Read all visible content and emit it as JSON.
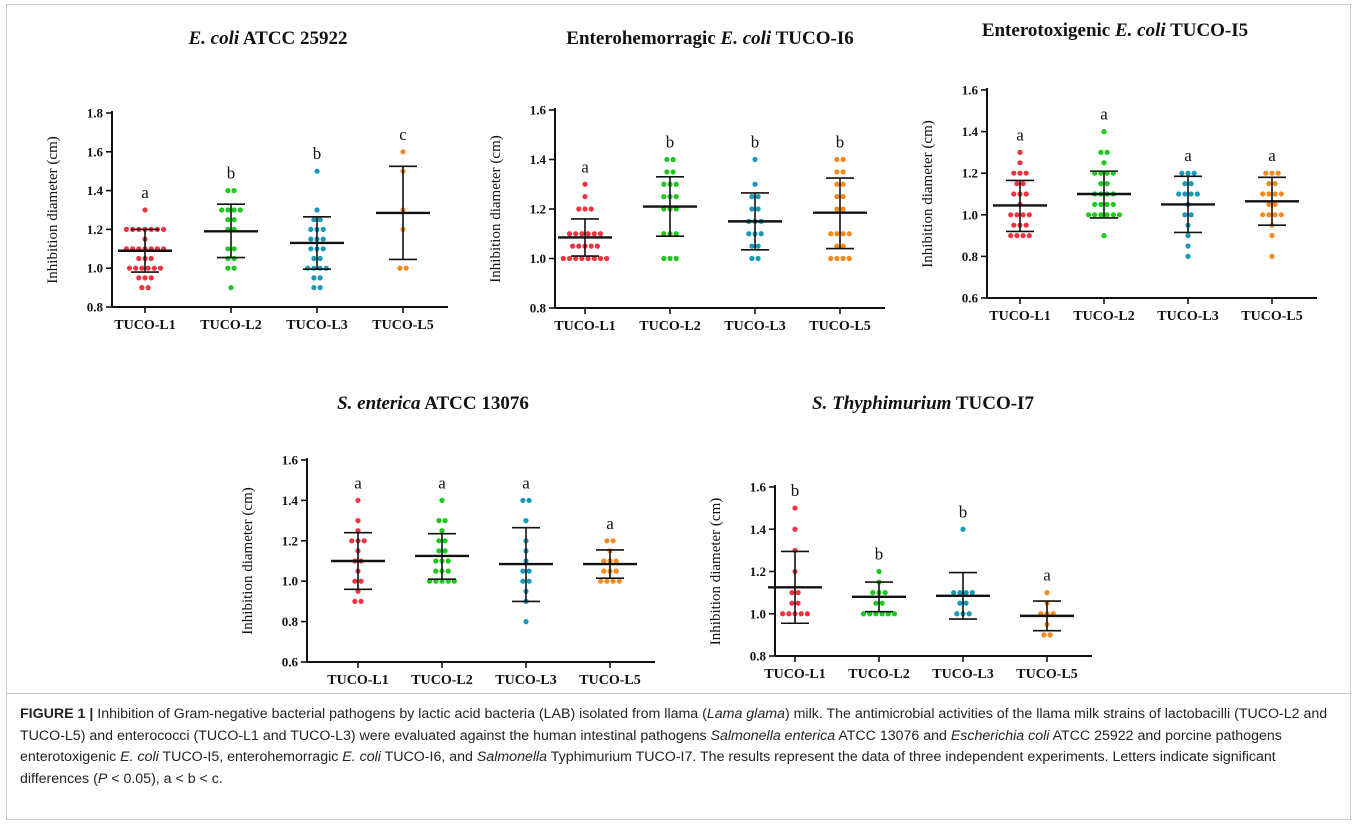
{
  "caption": {
    "lead": "FIGURE 1 |",
    "segments": [
      {
        "t": " Inhibition of Gram-negative bacterial pathogens by lactic acid bacteria (LAB) isolated from llama (",
        "i": false
      },
      {
        "t": "Lama glama",
        "i": true
      },
      {
        "t": ") milk. The antimicrobial activities of the llama milk strains of lactobacilli (TUCO-L2 and TUCO-L5) and enterococci (TUCO-L1 and TUCO-L3) were evaluated against the human intestinal pathogens ",
        "i": false
      },
      {
        "t": "Salmonella enterica",
        "i": true
      },
      {
        "t": " ATCC 13076 and ",
        "i": false
      },
      {
        "t": "Escherichia coli",
        "i": true
      },
      {
        "t": " ATCC 25922 and porcine pathogens enterotoxigenic ",
        "i": false
      },
      {
        "t": "E. coli",
        "i": true
      },
      {
        "t": " TUCO-I5, enterohemorragic ",
        "i": false
      },
      {
        "t": "E. coli",
        "i": true
      },
      {
        "t": " TUCO-I6, and ",
        "i": false
      },
      {
        "t": "Salmonella",
        "i": true
      },
      {
        "t": " Typhimurium TUCO-I7. The results represent the data of three independent experiments. Letters indicate significant differences (",
        "i": false
      },
      {
        "t": "P",
        "i": true
      },
      {
        "t": " < 0.05), a < b < c.",
        "i": false
      }
    ]
  },
  "colors": {
    "TUCO-L1": "#ee3440",
    "TUCO-L2": "#1dc81d",
    "TUCO-L3": "#1799b9",
    "TUCO-L5": "#f58a1f",
    "bars": "#111111"
  },
  "chart_data": [
    {
      "type": "scatter",
      "title": [
        {
          "t": "E. coli",
          "i": true
        },
        {
          "t": " ATCC 25922",
          "i": false
        }
      ],
      "ylabel": "Inhibition diameter (cm)",
      "ylim": [
        0.8,
        1.8
      ],
      "yticks": [
        "0.8",
        "1.0",
        "1.2",
        "1.4",
        "1.6",
        "1.8"
      ],
      "categories": [
        "TUCO-L1",
        "TUCO-L2",
        "TUCO-L3",
        "TUCO-L5"
      ],
      "groups": [
        {
          "name": "TUCO-L1",
          "mean": 1.09,
          "sd_low": 0.98,
          "sd_high": 1.2,
          "letter": "a",
          "points": [
            1.3,
            1.2,
            1.2,
            1.2,
            1.2,
            1.2,
            1.2,
            1.2,
            1.15,
            1.1,
            1.1,
            1.1,
            1.1,
            1.1,
            1.1,
            1.1,
            1.05,
            1.05,
            1.05,
            1.0,
            1.0,
            1.0,
            1.0,
            1.0,
            1.0,
            0.95,
            0.95,
            0.95,
            0.9,
            0.9
          ]
        },
        {
          "name": "TUCO-L2",
          "mean": 1.19,
          "sd_low": 1.055,
          "sd_high": 1.33,
          "letter": "b",
          "points": [
            1.4,
            1.4,
            1.3,
            1.3,
            1.3,
            1.3,
            1.25,
            1.25,
            1.2,
            1.2,
            1.1,
            1.1,
            1.05,
            1.05,
            1.0,
            1.0,
            0.9
          ]
        },
        {
          "name": "TUCO-L3",
          "mean": 1.13,
          "sd_low": 0.995,
          "sd_high": 1.265,
          "letter": "b",
          "points": [
            1.5,
            1.3,
            1.25,
            1.25,
            1.2,
            1.2,
            1.2,
            1.15,
            1.15,
            1.15,
            1.1,
            1.1,
            1.1,
            1.05,
            1.05,
            1.0,
            1.0,
            1.0,
            1.0,
            0.95,
            0.95,
            0.9,
            0.9
          ]
        },
        {
          "name": "TUCO-L5",
          "mean": 1.285,
          "sd_low": 1.045,
          "sd_high": 1.525,
          "letter": "c",
          "points": [
            1.6,
            1.5,
            1.3,
            1.2,
            1.0,
            1.0
          ]
        }
      ]
    },
    {
      "type": "scatter",
      "title": [
        {
          "t": "Enterohemorragic ",
          "i": false
        },
        {
          "t": "E. coli",
          "i": true
        },
        {
          "t": " TUCO-I6",
          "i": false
        }
      ],
      "ylabel": "Inhibition diameter (cm)",
      "ylim": [
        0.8,
        1.6
      ],
      "yticks": [
        "0.8",
        "1.0",
        "1.2",
        "1.4",
        "1.6"
      ],
      "categories": [
        "TUCO-L1",
        "TUCO-L2",
        "TUCO-L3",
        "TUCO-L5"
      ],
      "groups": [
        {
          "name": "TUCO-L1",
          "mean": 1.085,
          "sd_low": 1.01,
          "sd_high": 1.16,
          "letter": "a",
          "points": [
            1.3,
            1.25,
            1.2,
            1.2,
            1.2,
            1.1,
            1.1,
            1.1,
            1.1,
            1.1,
            1.1,
            1.05,
            1.05,
            1.05,
            1.05,
            1.05,
            1.0,
            1.0,
            1.0,
            1.0,
            1.0,
            1.0,
            1.0,
            1.0
          ]
        },
        {
          "name": "TUCO-L2",
          "mean": 1.21,
          "sd_low": 1.09,
          "sd_high": 1.33,
          "letter": "b",
          "points": [
            1.4,
            1.4,
            1.35,
            1.35,
            1.3,
            1.3,
            1.3,
            1.25,
            1.25,
            1.25,
            1.2,
            1.2,
            1.2,
            1.1,
            1.1,
            1.1,
            1.0,
            1.0,
            1.0
          ]
        },
        {
          "name": "TUCO-L3",
          "mean": 1.15,
          "sd_low": 1.035,
          "sd_high": 1.265,
          "letter": "b",
          "points": [
            1.4,
            1.3,
            1.25,
            1.25,
            1.2,
            1.2,
            1.15,
            1.15,
            1.15,
            1.1,
            1.1,
            1.1,
            1.05,
            1.05,
            1.0,
            1.0
          ]
        },
        {
          "name": "TUCO-L5",
          "mean": 1.185,
          "sd_low": 1.04,
          "sd_high": 1.325,
          "letter": "b",
          "points": [
            1.4,
            1.4,
            1.35,
            1.35,
            1.3,
            1.3,
            1.25,
            1.25,
            1.2,
            1.2,
            1.1,
            1.1,
            1.1,
            1.1,
            1.05,
            1.05,
            1.0,
            1.0,
            1.0,
            1.0
          ]
        }
      ]
    },
    {
      "type": "scatter",
      "title": [
        {
          "t": "Enterotoxigenic ",
          "i": false
        },
        {
          "t": "E. coli",
          "i": true
        },
        {
          "t": " TUCO-I5",
          "i": false
        }
      ],
      "ylabel": "Inhibition diameter (cm)",
      "ylim": [
        0.6,
        1.6
      ],
      "yticks": [
        "0.6",
        "0.8",
        "1.0",
        "1.2",
        "1.4",
        "1.6"
      ],
      "categories": [
        "TUCO-L1",
        "TUCO-L2",
        "TUCO-L3",
        "TUCO-L5"
      ],
      "groups": [
        {
          "name": "TUCO-L1",
          "mean": 1.045,
          "sd_low": 0.92,
          "sd_high": 1.165,
          "letter": "a",
          "points": [
            1.3,
            1.25,
            1.2,
            1.2,
            1.2,
            1.15,
            1.15,
            1.1,
            1.1,
            1.1,
            1.05,
            1.0,
            1.0,
            1.0,
            1.0,
            0.95,
            0.95,
            0.95,
            0.9,
            0.9,
            0.9,
            0.9
          ]
        },
        {
          "name": "TUCO-L2",
          "mean": 1.1,
          "sd_low": 0.985,
          "sd_high": 1.21,
          "letter": "a",
          "points": [
            1.4,
            1.3,
            1.3,
            1.25,
            1.2,
            1.2,
            1.2,
            1.2,
            1.15,
            1.15,
            1.1,
            1.1,
            1.1,
            1.1,
            1.05,
            1.05,
            1.05,
            1.05,
            1.0,
            1.0,
            1.0,
            1.0,
            1.0,
            1.0,
            0.9
          ]
        },
        {
          "name": "TUCO-L3",
          "mean": 1.05,
          "sd_low": 0.915,
          "sd_high": 1.185,
          "letter": "a",
          "points": [
            1.2,
            1.2,
            1.2,
            1.15,
            1.15,
            1.1,
            1.1,
            1.1,
            1.1,
            1.05,
            1.0,
            1.0,
            0.95,
            0.9,
            0.85,
            0.8
          ]
        },
        {
          "name": "TUCO-L5",
          "mean": 1.065,
          "sd_low": 0.95,
          "sd_high": 1.18,
          "letter": "a",
          "points": [
            1.2,
            1.2,
            1.2,
            1.15,
            1.15,
            1.1,
            1.1,
            1.1,
            1.1,
            1.05,
            1.05,
            1.0,
            1.0,
            1.0,
            1.0,
            0.95,
            0.9,
            0.8
          ]
        }
      ]
    },
    {
      "type": "scatter",
      "title": [
        {
          "t": "S. enterica",
          "i": true
        },
        {
          "t": " ATCC 13076",
          "i": false
        }
      ],
      "ylabel": "Inhibition diameter (cm)",
      "ylim": [
        0.6,
        1.6
      ],
      "yticks": [
        "0.6",
        "0.8",
        "1.0",
        "1.2",
        "1.4",
        "1.6"
      ],
      "categories": [
        "TUCO-L1",
        "TUCO-L2",
        "TUCO-L3",
        "TUCO-L5"
      ],
      "groups": [
        {
          "name": "TUCO-L1",
          "mean": 1.1,
          "sd_low": 0.96,
          "sd_high": 1.24,
          "letter": "a",
          "points": [
            1.4,
            1.3,
            1.25,
            1.2,
            1.2,
            1.2,
            1.15,
            1.1,
            1.1,
            1.05,
            1.0,
            1.0,
            0.95,
            0.9,
            0.9
          ]
        },
        {
          "name": "TUCO-L2",
          "mean": 1.125,
          "sd_low": 1.01,
          "sd_high": 1.235,
          "letter": "a",
          "points": [
            1.4,
            1.3,
            1.3,
            1.25,
            1.2,
            1.2,
            1.15,
            1.15,
            1.1,
            1.1,
            1.1,
            1.05,
            1.05,
            1.05,
            1.0,
            1.0,
            1.0,
            1.0,
            1.0
          ]
        },
        {
          "name": "TUCO-L3",
          "mean": 1.085,
          "sd_low": 0.9,
          "sd_high": 1.265,
          "letter": "a",
          "points": [
            1.4,
            1.4,
            1.3,
            1.2,
            1.15,
            1.1,
            1.05,
            1.05,
            1.0,
            1.0,
            0.95,
            0.9,
            0.8
          ]
        },
        {
          "name": "TUCO-L5",
          "mean": 1.085,
          "sd_low": 1.015,
          "sd_high": 1.155,
          "letter": "a",
          "points": [
            1.2,
            1.2,
            1.15,
            1.1,
            1.1,
            1.1,
            1.05,
            1.05,
            1.05,
            1.0,
            1.0,
            1.0,
            1.0
          ]
        }
      ]
    },
    {
      "type": "scatter",
      "title": [
        {
          "t": "S. Thyphimurium",
          "i": true
        },
        {
          "t": " TUCO-I7",
          "i": false
        }
      ],
      "ylabel": "Inhibition diameter (cm)",
      "ylim": [
        0.8,
        1.6
      ],
      "yticks": [
        "0.8",
        "1.0",
        "1.2",
        "1.4",
        "1.6"
      ],
      "categories": [
        "TUCO-L1",
        "TUCO-L2",
        "TUCO-L3",
        "TUCO-L5"
      ],
      "groups": [
        {
          "name": "TUCO-L1",
          "mean": 1.125,
          "sd_low": 0.955,
          "sd_high": 1.295,
          "letter": "b",
          "points": [
            1.5,
            1.4,
            1.3,
            1.2,
            1.1,
            1.1,
            1.05,
            1.05,
            1.0,
            1.0,
            1.0,
            1.0,
            1.0
          ]
        },
        {
          "name": "TUCO-L2",
          "mean": 1.08,
          "sd_low": 1.01,
          "sd_high": 1.15,
          "letter": "b",
          "points": [
            1.2,
            1.15,
            1.1,
            1.1,
            1.1,
            1.05,
            1.05,
            1.0,
            1.0,
            1.0,
            1.0,
            1.0,
            1.0
          ]
        },
        {
          "name": "TUCO-L3",
          "mean": 1.085,
          "sd_low": 0.975,
          "sd_high": 1.195,
          "letter": "b",
          "points": [
            1.4,
            1.1,
            1.1,
            1.1,
            1.1,
            1.05,
            1.05,
            1.0,
            1.0,
            1.0
          ]
        },
        {
          "name": "TUCO-L5",
          "mean": 0.99,
          "sd_low": 0.92,
          "sd_high": 1.06,
          "letter": "a",
          "points": [
            1.1,
            1.05,
            1.0,
            1.0,
            1.0,
            0.95,
            0.9,
            0.9
          ]
        }
      ]
    }
  ]
}
